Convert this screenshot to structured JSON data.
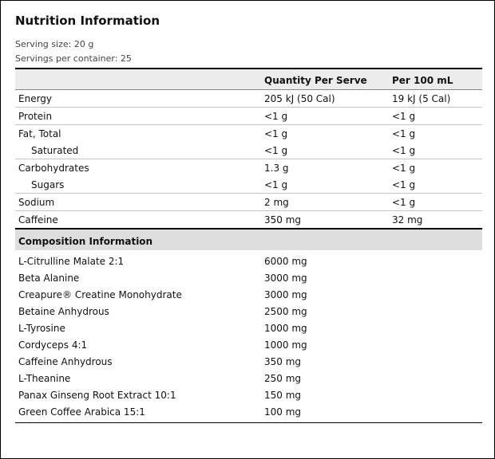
{
  "title": "Nutrition Information",
  "serving_size": "Serving size: 20 g",
  "servings_per_container": "Servings per container: 25",
  "nutrition": {
    "col_quantity": "Quantity Per Serve",
    "col_per100": "Per 100 mL",
    "rows": [
      {
        "name": "Energy",
        "per_serve": "205 kJ (50 Cal)",
        "per_100": "19 kJ (5 Cal)"
      },
      {
        "name": "Protein",
        "per_serve": "<1 g",
        "per_100": "<1 g"
      },
      {
        "name": "Fat, Total",
        "per_serve": "<1 g",
        "per_100": "<1 g"
      },
      {
        "name": "Saturated",
        "per_serve": "<1 g",
        "per_100": "<1 g"
      },
      {
        "name": "Carbohydrates",
        "per_serve": "1.3 g",
        "per_100": "<1 g"
      },
      {
        "name": "Sugars",
        "per_serve": "<1 g",
        "per_100": "<1 g"
      },
      {
        "name": "Sodium",
        "per_serve": "2 mg",
        "per_100": "<1 g"
      },
      {
        "name": "Caffeine",
        "per_serve": "350 mg",
        "per_100": "32 mg"
      }
    ]
  },
  "composition": {
    "heading": "Composition Information",
    "rows": [
      {
        "name": "L-Citrulline Malate 2:1",
        "amount": "6000 mg"
      },
      {
        "name": "Beta Alanine",
        "amount": "3000 mg"
      },
      {
        "name": "Creapure® Creatine Monohydrate",
        "amount": "3000 mg"
      },
      {
        "name": "Betaine Anhydrous",
        "amount": "2500 mg"
      },
      {
        "name": "L-Tyrosine",
        "amount": "1000 mg"
      },
      {
        "name": "Cordyceps 4:1",
        "amount": "1000 mg"
      },
      {
        "name": "Caffeine Anhydrous",
        "amount": "350 mg"
      },
      {
        "name": "L-Theanine",
        "amount": "250 mg"
      },
      {
        "name": "Panax Ginseng Root Extract 10:1",
        "amount": "150 mg"
      },
      {
        "name": "Green Coffee Arabica 15:1",
        "amount": "100 mg"
      }
    ]
  }
}
